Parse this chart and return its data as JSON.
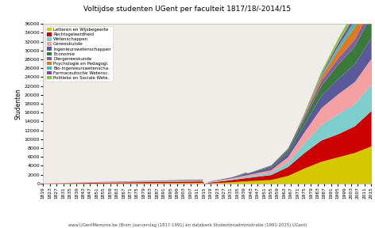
{
  "title": "Voltijdse studenten UGent per faculteit 1817/18/-2014/15",
  "ylabel": "Studenten",
  "footer": "www.UGentMemorie.be (Bron: Jaarverslag (1817-1991) en databank Studentenadministratie (1991-2015) UGent)",
  "faculties": [
    "Letteren en Wijsbegeerte",
    "Rechtsgeleerdheid",
    "Wetenschappen",
    "Geneeskunde",
    "Ingenieurswetenschappen",
    "Economie",
    "Diergeneeskunde",
    "Psychologie en Pedagogi.",
    "Bio-ingenieurswetenscha.",
    "Farmaceutische Wetensc.",
    "Politieke en Sociale Wete."
  ],
  "colors": [
    "#d4c800",
    "#cc0000",
    "#7ecece",
    "#f4a0a0",
    "#5a5a9a",
    "#3a7a3a",
    "#8060a0",
    "#e07820",
    "#40c0b0",
    "#9040b0",
    "#80c840"
  ],
  "ylim": [
    0,
    36000
  ],
  "yticks": [
    0,
    2000,
    4000,
    6000,
    8000,
    10000,
    12000,
    14000,
    16000,
    18000,
    20000,
    22000,
    24000,
    26000,
    28000,
    30000,
    32000,
    34000,
    36000
  ],
  "bg_color": "#ffffff",
  "plot_bg": "#f0ede8"
}
